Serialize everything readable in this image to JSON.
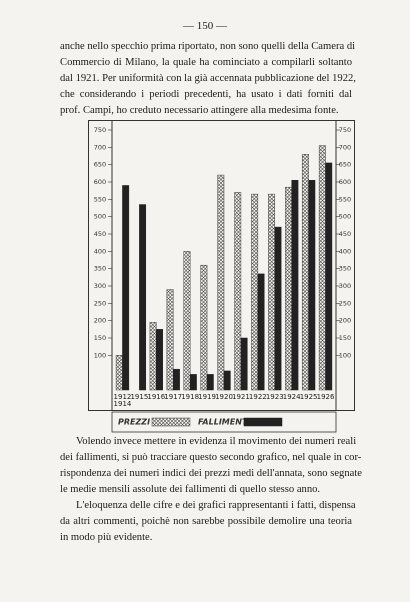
{
  "page_number": "— 150 —",
  "paragraphs": [
    {
      "lines": [
        "anche nello specchio prima riportato, non sono quelli della Camera di",
        "Commercio di Milano, la quale ha cominciato a compilarli soltanto",
        "dal 1921. Per uniformità con la già accennata pubblicazione del 1922,",
        "che considerando i periodi precedenti, ha usato i dati forniti dal",
        "prof. Campi, ho creduto necessario attingere alla medesima fonte."
      ]
    },
    {
      "lines": [
        "Volendo invece mettere in evidenza il movimento dei numeri reali",
        "dei fallimenti, si può tracciare questo secondo grafico, nel quale in cor-",
        "rispondenza dei numeri indici dei prezzi medi dell'annata, sono segnate",
        "le medie mensili assolute dei fallimenti di quello stesso anno."
      ]
    },
    {
      "lines": [
        "L'eloquenza delle cifre e dei grafici rappresentanti i fatti, dispensa",
        "da altri commenti, poichè non sarebbe possibile demolire una teoria",
        "in modo più evidente."
      ]
    }
  ],
  "chart_data": {
    "type": "bar",
    "categories": [
      "1912 1914",
      "1915",
      "1916",
      "1917",
      "1918",
      "1919",
      "1920",
      "1921",
      "1922",
      "1923",
      "1924",
      "1925",
      "1926"
    ],
    "series": [
      {
        "name": "PREZZI",
        "color": "#444444",
        "hatch": true,
        "values": [
          100,
          null,
          195,
          290,
          400,
          360,
          620,
          570,
          565,
          565,
          585,
          680,
          705
        ]
      },
      {
        "name": "FALLIMENTI",
        "color": "#222222",
        "values": [
          590,
          535,
          175,
          60,
          45,
          45,
          55,
          150,
          335,
          470,
          605,
          605,
          655
        ]
      }
    ],
    "ylim": [
      0,
      750
    ],
    "yticks": [
      100,
      150,
      200,
      250,
      300,
      350,
      400,
      450,
      500,
      550,
      600,
      650,
      700,
      750
    ],
    "y2lim": [
      0,
      750
    ],
    "y2ticks": [
      100,
      150,
      200,
      250,
      300,
      350,
      400,
      450,
      500,
      550,
      600,
      650,
      700,
      750
    ]
  }
}
